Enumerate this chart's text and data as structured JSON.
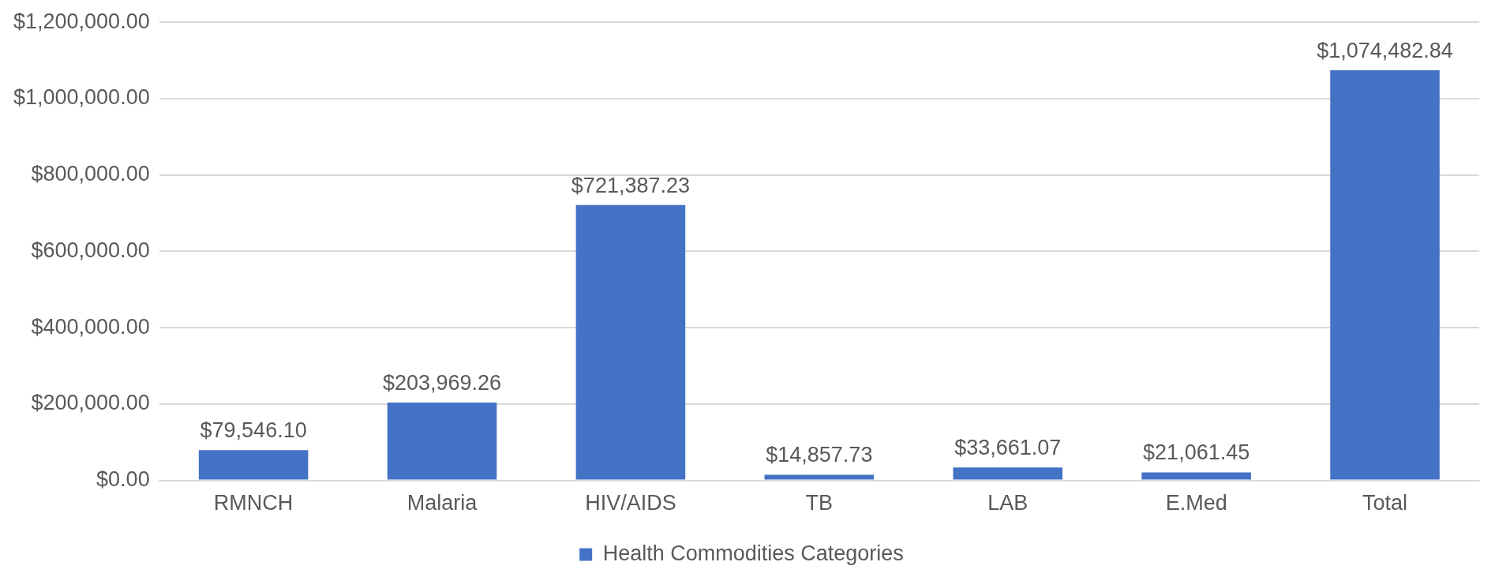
{
  "chart_data": {
    "type": "bar",
    "categories": [
      "RMNCH",
      "Malaria",
      "HIV/AIDS",
      "TB",
      "LAB",
      "E.Med",
      "Total"
    ],
    "series": [
      {
        "name": "Health Commodities Categories",
        "color": "#4472c4",
        "values": [
          79546.1,
          203969.26,
          721387.23,
          14857.73,
          33661.07,
          21061.45,
          1074482.84
        ],
        "value_labels": [
          "$79,546.10",
          "$203,969.26",
          "$721,387.23",
          "$14,857.73",
          "$33,661.07",
          "$21,061.45",
          "$1,074,482.84"
        ]
      }
    ],
    "ylim": [
      0,
      1200000
    ],
    "yticks": [
      {
        "value": 0,
        "label": "$0.00"
      },
      {
        "value": 200000,
        "label": "$200,000.00"
      },
      {
        "value": 400000,
        "label": "$400,000.00"
      },
      {
        "value": 600000,
        "label": "$600,000.00"
      },
      {
        "value": 800000,
        "label": "$800,000.00"
      },
      {
        "value": 1000000,
        "label": "$1,000,000.00"
      },
      {
        "value": 1200000,
        "label": "$1,200,000.00"
      }
    ],
    "grid": "y",
    "legend": "bottom"
  }
}
